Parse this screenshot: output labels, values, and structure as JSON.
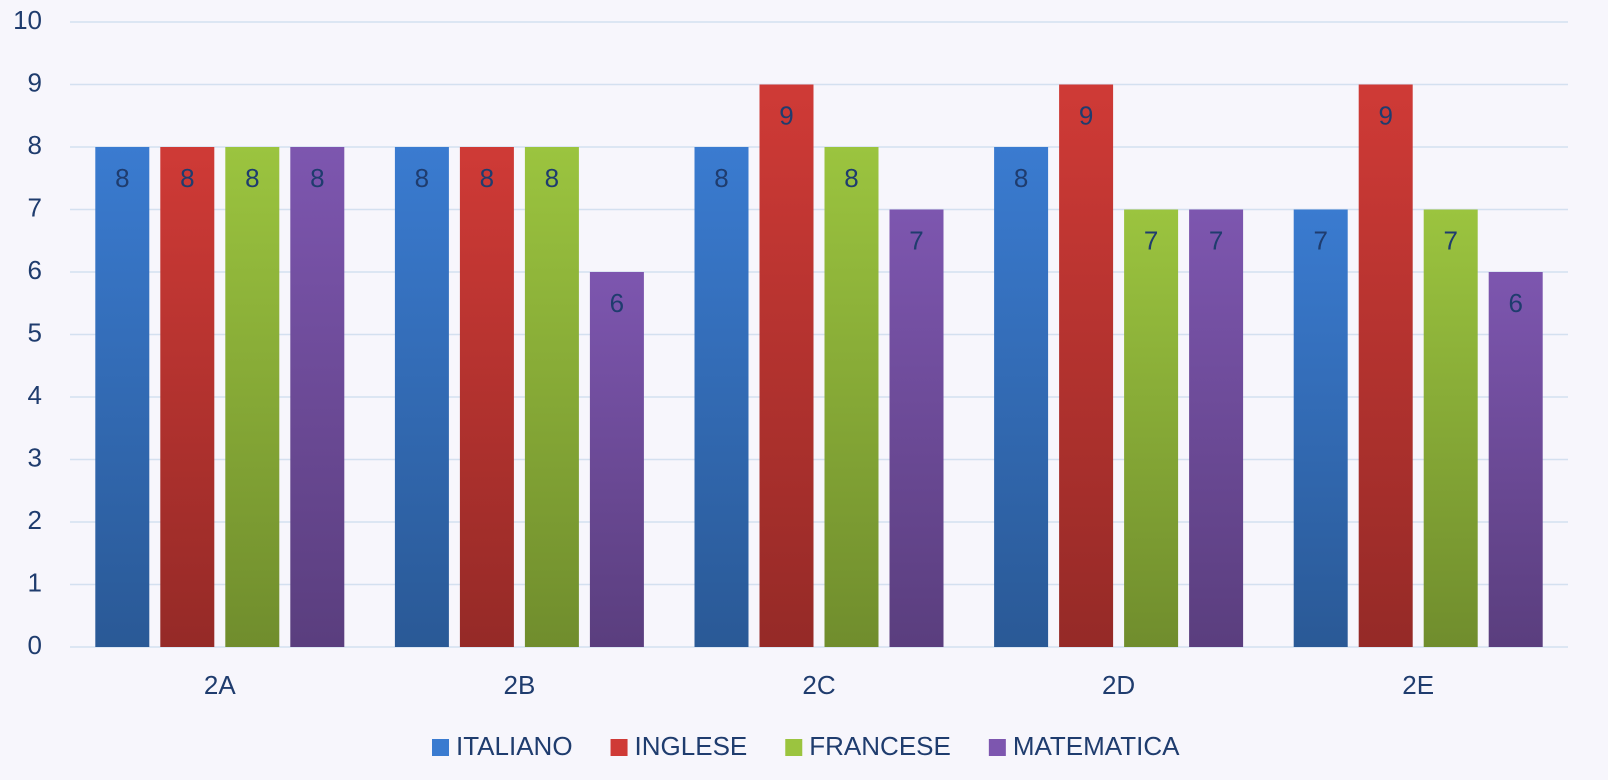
{
  "chart_data": {
    "type": "bar",
    "categories": [
      "2A",
      "2B",
      "2C",
      "2D",
      "2E"
    ],
    "series": [
      {
        "name": "ITALIANO",
        "color": "#3a7bd0",
        "values": [
          8,
          8,
          8,
          8,
          7
        ]
      },
      {
        "name": "INGLESE",
        "color": "#cf3a36",
        "values": [
          8,
          8,
          9,
          9,
          9
        ]
      },
      {
        "name": "FRANCESE",
        "color": "#9bc43f",
        "values": [
          8,
          8,
          8,
          7,
          7
        ]
      },
      {
        "name": "MATEMATICA",
        "color": "#7d56af",
        "values": [
          8,
          6,
          7,
          7,
          6
        ]
      }
    ],
    "ylim": [
      0,
      10
    ],
    "yticks": [
      0,
      1,
      2,
      3,
      4,
      5,
      6,
      7,
      8,
      9,
      10
    ],
    "grid": true,
    "legend": "bottom"
  }
}
